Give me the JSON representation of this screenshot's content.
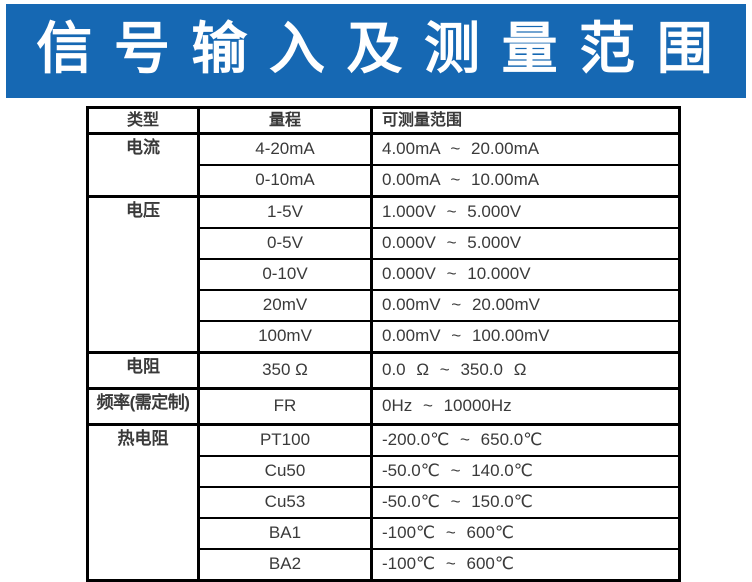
{
  "banner": {
    "title": "信 号 输 入 及 测 量 范 围",
    "bg_color": "#1668b3",
    "text_color": "#ffffff"
  },
  "colors": {
    "table_border": "#000000",
    "table_text": "#3a3a3a",
    "page_bg": "#ffffff"
  },
  "table": {
    "headers": {
      "type": "类型",
      "range": "量程",
      "measurable": "可测量范围"
    },
    "groups": [
      {
        "type": "电流",
        "rows": [
          {
            "range": "4-20mA",
            "measurable": "4.00mA ~ 20.00mA"
          },
          {
            "range": "0-10mA",
            "measurable": "0.00mA ~ 10.00mA"
          }
        ]
      },
      {
        "type": "电压",
        "rows": [
          {
            "range": "1-5V",
            "measurable": "1.000V ~ 5.000V"
          },
          {
            "range": "0-5V",
            "measurable": "0.000V ~ 5.000V"
          },
          {
            "range": "0-10V",
            "measurable": "0.000V ~ 10.000V"
          },
          {
            "range": "20mV",
            "measurable": "0.00mV ~ 20.00mV"
          },
          {
            "range": "100mV",
            "measurable": "0.00mV ~ 100.00mV"
          }
        ]
      },
      {
        "type": "电阻",
        "rows": [
          {
            "range": "350 Ω",
            "measurable": "0.0 Ω ~ 350.0 Ω"
          }
        ]
      },
      {
        "type": "频率(需定制)",
        "rows": [
          {
            "range": "FR",
            "measurable": "0Hz ~ 10000Hz"
          }
        ]
      },
      {
        "type": "热电阻",
        "rows": [
          {
            "range": "PT100",
            "measurable": "-200.0℃ ~ 650.0℃"
          },
          {
            "range": "Cu50",
            "measurable": "-50.0℃ ~ 140.0℃"
          },
          {
            "range": "Cu53",
            "measurable": "-50.0℃ ~ 150.0℃"
          },
          {
            "range": "BA1",
            "measurable": "-100℃ ~ 600℃"
          },
          {
            "range": "BA2",
            "measurable": "-100℃ ~ 600℃"
          }
        ]
      }
    ]
  }
}
